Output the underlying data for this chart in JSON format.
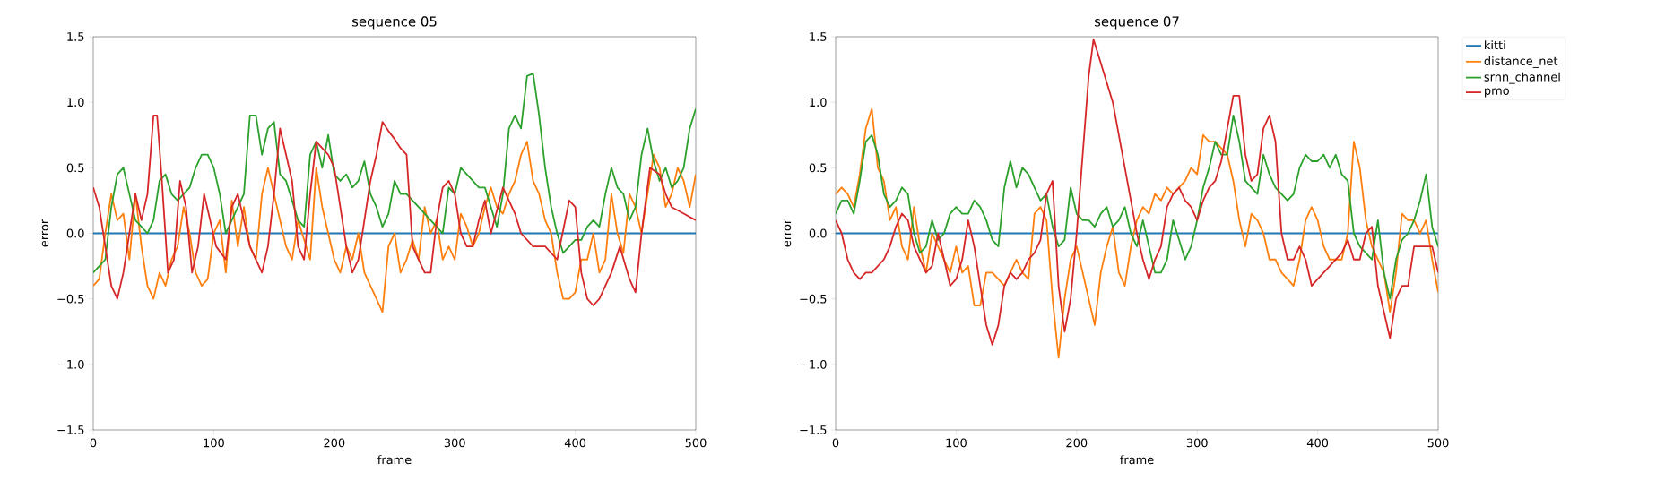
{
  "chart_data": [
    {
      "type": "line",
      "title": "sequence 05",
      "xlabel": "frame",
      "ylabel": "error",
      "xlim": [
        0,
        500
      ],
      "ylim": [
        -1.5,
        1.5
      ],
      "xticks": [
        0,
        100,
        200,
        300,
        400,
        500
      ],
      "yticks": [
        {
          "value": -1.5,
          "label": "−1.5"
        },
        {
          "value": -1.0,
          "label": "−1.0"
        },
        {
          "value": -0.5,
          "label": "−0.5"
        },
        {
          "value": 0.0,
          "label": "0.0"
        },
        {
          "value": 0.5,
          "label": "0.5"
        },
        {
          "value": 1.0,
          "label": "1.0"
        },
        {
          "value": 1.5,
          "label": "1.5"
        }
      ],
      "legend": false,
      "x": [
        0,
        5,
        10,
        15,
        20,
        25,
        30,
        35,
        40,
        45,
        50,
        55,
        60,
        65,
        70,
        75,
        80,
        85,
        90,
        95,
        100,
        105,
        110,
        115,
        120,
        125,
        130,
        135,
        140,
        145,
        150,
        155,
        160,
        165,
        170,
        175,
        180,
        185,
        190,
        195,
        200,
        205,
        210,
        215,
        220,
        225,
        230,
        235,
        240,
        245,
        250,
        255,
        260,
        265,
        270,
        275,
        280,
        285,
        290,
        295,
        300,
        305,
        310,
        315,
        320,
        325,
        330,
        335,
        340,
        345,
        350,
        355,
        360,
        365,
        370,
        375,
        380,
        385,
        390,
        395,
        400,
        405,
        410,
        415,
        420,
        425,
        430,
        435,
        440,
        445,
        450,
        455,
        460,
        465,
        470,
        475,
        480,
        485,
        490,
        495,
        500
      ],
      "series": [
        {
          "color": "#1f77b4",
          "x": [
            0,
            500
          ],
          "values": [
            0,
            0
          ]
        },
        {
          "color": "#ff7f0e",
          "values": [
            -0.4,
            -0.35,
            0.0,
            0.3,
            0.1,
            0.15,
            -0.2,
            0.3,
            -0.1,
            -0.4,
            -0.5,
            -0.3,
            -0.4,
            -0.2,
            -0.1,
            0.2,
            0.0,
            -0.3,
            -0.4,
            -0.35,
            0.0,
            0.1,
            -0.3,
            0.25,
            -0.1,
            0.2,
            -0.1,
            -0.2,
            0.3,
            0.5,
            0.3,
            0.1,
            -0.1,
            -0.2,
            0.1,
            -0.05,
            -0.2,
            0.5,
            0.2,
            0.0,
            -0.2,
            -0.3,
            -0.1,
            -0.2,
            0.0,
            -0.3,
            -0.4,
            -0.5,
            -0.6,
            -0.1,
            0.0,
            -0.3,
            -0.2,
            -0.05,
            -0.2,
            0.2,
            0.0,
            0.1,
            -0.2,
            -0.1,
            -0.2,
            0.15,
            0.05,
            -0.1,
            0.0,
            0.2,
            0.35,
            0.2,
            0.15,
            0.3,
            0.4,
            0.6,
            0.7,
            0.4,
            0.3,
            0.1,
            0.0,
            -0.3,
            -0.5,
            -0.5,
            -0.45,
            -0.2,
            -0.2,
            0.0,
            -0.3,
            -0.2,
            0.3,
            0.0,
            -0.15,
            0.3,
            0.2,
            0.0,
            0.3,
            0.6,
            0.5,
            0.2,
            0.3,
            0.5,
            0.4,
            0.2,
            0.45
          ]
        },
        {
          "color": "#2ca02c",
          "values": [
            -0.3,
            -0.25,
            -0.2,
            0.2,
            0.45,
            0.5,
            0.3,
            0.1,
            0.05,
            0.0,
            0.1,
            0.4,
            0.45,
            0.3,
            0.25,
            0.3,
            0.35,
            0.5,
            0.6,
            0.6,
            0.5,
            0.3,
            0.0,
            0.1,
            0.2,
            0.3,
            0.9,
            0.9,
            0.6,
            0.8,
            0.85,
            0.45,
            0.4,
            0.25,
            0.1,
            0.05,
            0.6,
            0.7,
            0.5,
            0.75,
            0.45,
            0.4,
            0.45,
            0.35,
            0.4,
            0.55,
            0.3,
            0.2,
            0.05,
            0.15,
            0.4,
            0.3,
            0.3,
            0.25,
            0.2,
            0.15,
            0.1,
            0.05,
            0.0,
            0.35,
            0.3,
            0.5,
            0.45,
            0.4,
            0.35,
            0.35,
            0.2,
            0.05,
            0.3,
            0.8,
            0.9,
            0.8,
            1.2,
            1.22,
            0.9,
            0.5,
            0.2,
            0.0,
            -0.15,
            -0.1,
            -0.05,
            -0.05,
            0.05,
            0.1,
            0.05,
            0.3,
            0.5,
            0.35,
            0.3,
            0.1,
            0.2,
            0.6,
            0.8,
            0.55,
            0.4,
            0.5,
            0.35,
            0.4,
            0.5,
            0.8,
            0.95
          ]
        },
        {
          "color": "#d62728",
          "x": [
            0,
            5,
            10,
            15,
            20,
            25,
            30,
            35,
            40,
            45,
            50,
            53,
            57,
            62,
            67,
            72,
            77,
            82,
            87,
            92,
            97,
            102,
            110,
            115,
            120,
            125,
            130,
            135,
            140,
            145,
            150,
            155,
            160,
            165,
            170,
            175,
            180,
            185,
            190,
            195,
            200,
            205,
            210,
            215,
            220,
            225,
            230,
            235,
            240,
            245,
            250,
            255,
            260,
            265,
            270,
            275,
            280,
            285,
            290,
            295,
            300,
            305,
            310,
            315,
            320,
            325,
            330,
            340,
            350,
            355,
            365,
            375,
            385,
            395,
            400,
            405,
            410,
            415,
            420,
            430,
            437,
            445,
            450,
            455,
            462,
            470,
            475,
            480,
            490,
            500
          ],
          "values": [
            0.35,
            0.2,
            -0.1,
            -0.4,
            -0.5,
            -0.3,
            0.0,
            0.3,
            0.1,
            0.3,
            0.9,
            0.9,
            0.4,
            -0.3,
            -0.2,
            0.4,
            0.2,
            -0.3,
            -0.1,
            0.3,
            0.1,
            -0.1,
            -0.2,
            0.2,
            0.3,
            0.1,
            -0.1,
            -0.2,
            -0.3,
            -0.1,
            0.3,
            0.8,
            0.6,
            0.4,
            -0.1,
            -0.2,
            0.3,
            0.7,
            0.65,
            0.6,
            0.5,
            0.2,
            -0.1,
            -0.3,
            -0.2,
            0.1,
            0.4,
            0.6,
            0.85,
            0.78,
            0.72,
            0.65,
            0.6,
            -0.1,
            -0.2,
            -0.3,
            -0.3,
            0.1,
            0.35,
            0.4,
            0.3,
            0.0,
            -0.1,
            -0.1,
            0.1,
            0.25,
            0.0,
            0.35,
            0.15,
            0.0,
            -0.1,
            -0.1,
            -0.2,
            0.25,
            0.2,
            -0.3,
            -0.5,
            -0.55,
            -0.5,
            -0.3,
            -0.1,
            -0.35,
            -0.45,
            0.0,
            0.5,
            0.45,
            0.3,
            0.2,
            0.15,
            0.1
          ]
        }
      ]
    },
    {
      "type": "line",
      "title": "sequence 07",
      "xlabel": "frame",
      "ylabel": "error",
      "xlim": [
        0,
        500
      ],
      "ylim": [
        -1.5,
        1.5
      ],
      "xticks": [
        0,
        100,
        200,
        300,
        400,
        500
      ],
      "yticks": [
        {
          "value": -1.5,
          "label": "−1.5"
        },
        {
          "value": -1.0,
          "label": "−1.0"
        },
        {
          "value": -0.5,
          "label": "−0.5"
        },
        {
          "value": 0.0,
          "label": "0.0"
        },
        {
          "value": 0.5,
          "label": "0.5"
        },
        {
          "value": 1.0,
          "label": "1.0"
        },
        {
          "value": 1.5,
          "label": "1.5"
        }
      ],
      "legend": "right",
      "x": [
        0,
        5,
        10,
        15,
        20,
        25,
        30,
        35,
        40,
        45,
        50,
        55,
        60,
        65,
        70,
        75,
        80,
        85,
        90,
        95,
        100,
        105,
        110,
        115,
        120,
        125,
        130,
        135,
        140,
        145,
        150,
        155,
        160,
        165,
        170,
        175,
        180,
        185,
        190,
        195,
        200,
        205,
        210,
        215,
        220,
        225,
        230,
        235,
        240,
        245,
        250,
        255,
        260,
        265,
        270,
        275,
        280,
        285,
        290,
        295,
        300,
        305,
        310,
        315,
        320,
        325,
        330,
        335,
        340,
        345,
        350,
        355,
        360,
        365,
        370,
        375,
        380,
        385,
        390,
        395,
        400,
        405,
        410,
        415,
        420,
        425,
        430,
        435,
        440,
        445,
        450,
        455,
        460,
        465,
        470,
        475,
        480,
        485,
        490,
        495,
        500
      ],
      "series": [
        {
          "name": "kitti",
          "color": "#1f77b4",
          "x": [
            0,
            500
          ],
          "values": [
            0,
            0
          ]
        },
        {
          "name": "distance_net",
          "color": "#ff7f0e",
          "values": [
            0.3,
            0.35,
            0.3,
            0.2,
            0.45,
            0.8,
            0.95,
            0.5,
            0.4,
            0.1,
            0.2,
            -0.1,
            -0.2,
            0.2,
            -0.1,
            -0.3,
            0.0,
            -0.1,
            -0.2,
            -0.3,
            -0.1,
            -0.3,
            -0.25,
            -0.55,
            -0.55,
            -0.3,
            -0.3,
            -0.35,
            -0.4,
            -0.3,
            -0.2,
            -0.3,
            -0.35,
            0.15,
            0.2,
            0.1,
            -0.5,
            -0.95,
            -0.5,
            -0.2,
            -0.1,
            -0.3,
            -0.5,
            -0.7,
            -0.3,
            -0.1,
            0.05,
            -0.3,
            -0.4,
            -0.1,
            0.1,
            0.2,
            0.15,
            0.3,
            0.25,
            0.35,
            0.3,
            0.35,
            0.4,
            0.5,
            0.45,
            0.75,
            0.7,
            0.7,
            0.65,
            0.6,
            0.4,
            0.1,
            -0.1,
            0.15,
            0.1,
            0.0,
            -0.2,
            -0.2,
            -0.3,
            -0.35,
            -0.4,
            -0.2,
            0.1,
            0.2,
            0.1,
            -0.1,
            -0.2,
            -0.2,
            -0.2,
            0.0,
            0.7,
            0.5,
            0.1,
            -0.1,
            -0.2,
            -0.3,
            -0.6,
            -0.3,
            0.15,
            0.1,
            0.1,
            0.0,
            0.1,
            -0.2,
            -0.45
          ]
        },
        {
          "name": "srnn_channel",
          "color": "#2ca02c",
          "values": [
            0.15,
            0.25,
            0.25,
            0.15,
            0.4,
            0.7,
            0.75,
            0.6,
            0.3,
            0.2,
            0.25,
            0.35,
            0.3,
            0.0,
            -0.15,
            -0.1,
            0.1,
            -0.05,
            0.0,
            0.15,
            0.2,
            0.15,
            0.15,
            0.25,
            0.2,
            0.1,
            -0.05,
            -0.1,
            0.35,
            0.55,
            0.35,
            0.5,
            0.45,
            0.35,
            0.25,
            0.3,
            0.05,
            -0.1,
            -0.05,
            0.35,
            0.15,
            0.1,
            0.1,
            0.05,
            0.15,
            0.2,
            0.05,
            0.1,
            0.2,
            0.0,
            -0.1,
            0.1,
            -0.1,
            -0.3,
            -0.3,
            -0.2,
            0.1,
            -0.05,
            -0.2,
            -0.1,
            0.1,
            0.35,
            0.5,
            0.7,
            0.6,
            0.6,
            0.9,
            0.7,
            0.4,
            0.35,
            0.3,
            0.6,
            0.45,
            0.35,
            0.3,
            0.25,
            0.3,
            0.5,
            0.6,
            0.55,
            0.55,
            0.6,
            0.5,
            0.6,
            0.45,
            0.4,
            0.0,
            -0.1,
            -0.15,
            -0.2,
            0.1,
            -0.3,
            -0.5,
            -0.2,
            -0.05,
            0.0,
            0.1,
            0.25,
            0.45,
            0.05,
            -0.1
          ]
        },
        {
          "name": "pmo",
          "color": "#d62728",
          "x": [
            0,
            5,
            10,
            15,
            20,
            25,
            30,
            35,
            40,
            45,
            50,
            55,
            60,
            65,
            70,
            75,
            80,
            85,
            90,
            95,
            100,
            105,
            110,
            115,
            120,
            125,
            130,
            135,
            140,
            145,
            150,
            155,
            160,
            165,
            170,
            175,
            180,
            185,
            190,
            195,
            200,
            205,
            210,
            214,
            220,
            230,
            240,
            250,
            255,
            260,
            265,
            270,
            275,
            280,
            285,
            290,
            295,
            300,
            305,
            310,
            315,
            320,
            325,
            330,
            335,
            340,
            345,
            350,
            355,
            360,
            365,
            370,
            375,
            380,
            385,
            390,
            395,
            400,
            410,
            420,
            425,
            430,
            435,
            440,
            445,
            450,
            455,
            460,
            465,
            470,
            475,
            480,
            485,
            490,
            495,
            500
          ],
          "values": [
            0.1,
            0.0,
            -0.2,
            -0.3,
            -0.35,
            -0.3,
            -0.3,
            -0.25,
            -0.2,
            -0.1,
            0.05,
            0.15,
            0.1,
            -0.1,
            -0.2,
            -0.3,
            -0.25,
            0.0,
            -0.2,
            -0.4,
            -0.35,
            -0.2,
            0.1,
            -0.1,
            -0.4,
            -0.7,
            -0.85,
            -0.7,
            -0.4,
            -0.3,
            -0.35,
            -0.3,
            -0.2,
            -0.15,
            -0.05,
            0.3,
            0.4,
            -0.4,
            -0.75,
            -0.5,
            0.0,
            0.6,
            1.2,
            1.48,
            1.3,
            1.0,
            0.5,
            0.0,
            -0.2,
            -0.35,
            -0.2,
            -0.1,
            0.2,
            0.3,
            0.35,
            0.25,
            0.2,
            0.1,
            0.25,
            0.35,
            0.4,
            0.55,
            0.8,
            1.05,
            1.05,
            0.6,
            0.4,
            0.45,
            0.8,
            0.9,
            0.7,
            0.0,
            -0.2,
            -0.2,
            -0.1,
            -0.2,
            -0.4,
            -0.35,
            -0.25,
            -0.15,
            -0.05,
            -0.2,
            -0.2,
            0.0,
            0.05,
            -0.4,
            -0.6,
            -0.8,
            -0.5,
            -0.4,
            -0.4,
            -0.1,
            -0.1,
            -0.1,
            -0.1,
            -0.3
          ]
        }
      ]
    }
  ]
}
